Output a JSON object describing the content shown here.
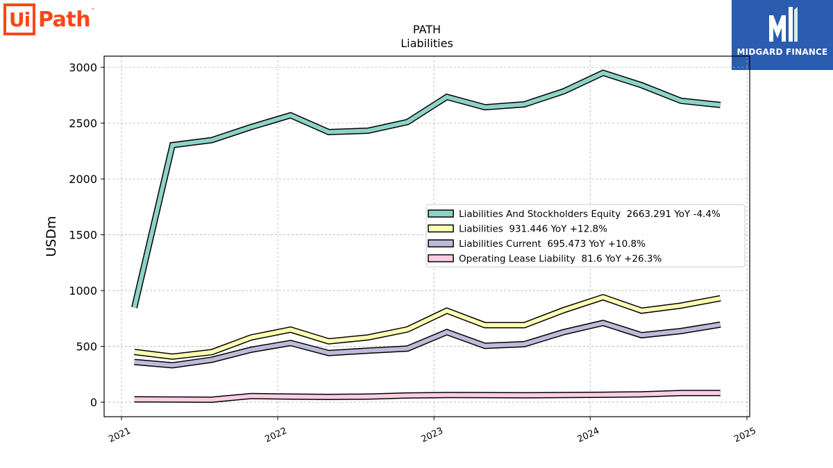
{
  "logos": {
    "left_ui": "Ui",
    "left_path": "Path",
    "left_tm": "™",
    "right_name": "MIDGARD FINANCE"
  },
  "chart_data": {
    "type": "line",
    "title": "PATH",
    "subtitle": "Liabilities",
    "xlabel": "",
    "ylabel": "USDm",
    "xlim": [
      "2021-01-01",
      "2025-01-01"
    ],
    "ylim": [
      -130,
      3100
    ],
    "x_ticks": [
      "2021",
      "2022",
      "2023",
      "2024",
      "2025"
    ],
    "y_ticks": [
      0,
      500,
      1000,
      1500,
      2000,
      2500,
      3000
    ],
    "grid": true,
    "legend_position": "center-right",
    "x": [
      "2021-01-31",
      "2021-04-30",
      "2021-07-31",
      "2021-10-31",
      "2022-01-31",
      "2022-04-30",
      "2022-07-31",
      "2022-10-31",
      "2023-01-31",
      "2023-04-30",
      "2023-07-31",
      "2023-10-31",
      "2024-01-31",
      "2024-04-30",
      "2024-07-31",
      "2024-10-31"
    ],
    "series": [
      {
        "name": "Liabilities And Stockholders Equity",
        "legend": "Liabilities And Stockholders Equity  2663.291 YoY -4.4%",
        "color": "#8dd3c7",
        "values": [
          848,
          2303,
          2348,
          2465,
          2570,
          2420,
          2432,
          2510,
          2735,
          2642,
          2668,
          2785,
          2950,
          2840,
          2700,
          2663
        ]
      },
      {
        "name": "Liabilities",
        "legend": "Liabilities  931.446 YoY +12.8%",
        "color": "#ffffb3",
        "values": [
          450,
          408,
          448,
          580,
          650,
          545,
          580,
          652,
          820,
          690,
          690,
          825,
          940,
          820,
          865,
          931
        ]
      },
      {
        "name": "Liabilities Current",
        "legend": "Liabilities Current  695.473 YoY +10.8%",
        "color": "#bebada",
        "values": [
          360,
          330,
          380,
          470,
          530,
          440,
          462,
          480,
          628,
          505,
          520,
          628,
          710,
          600,
          637,
          695
        ]
      },
      {
        "name": "Operating Lease Liability",
        "legend": "Operating Lease Liability  81.6 YoY +26.3%",
        "color": "#fccde5",
        "values": [
          25,
          24,
          22,
          55,
          50,
          47,
          50,
          60,
          64,
          63,
          62,
          64,
          66,
          70,
          82,
          82
        ]
      }
    ]
  }
}
